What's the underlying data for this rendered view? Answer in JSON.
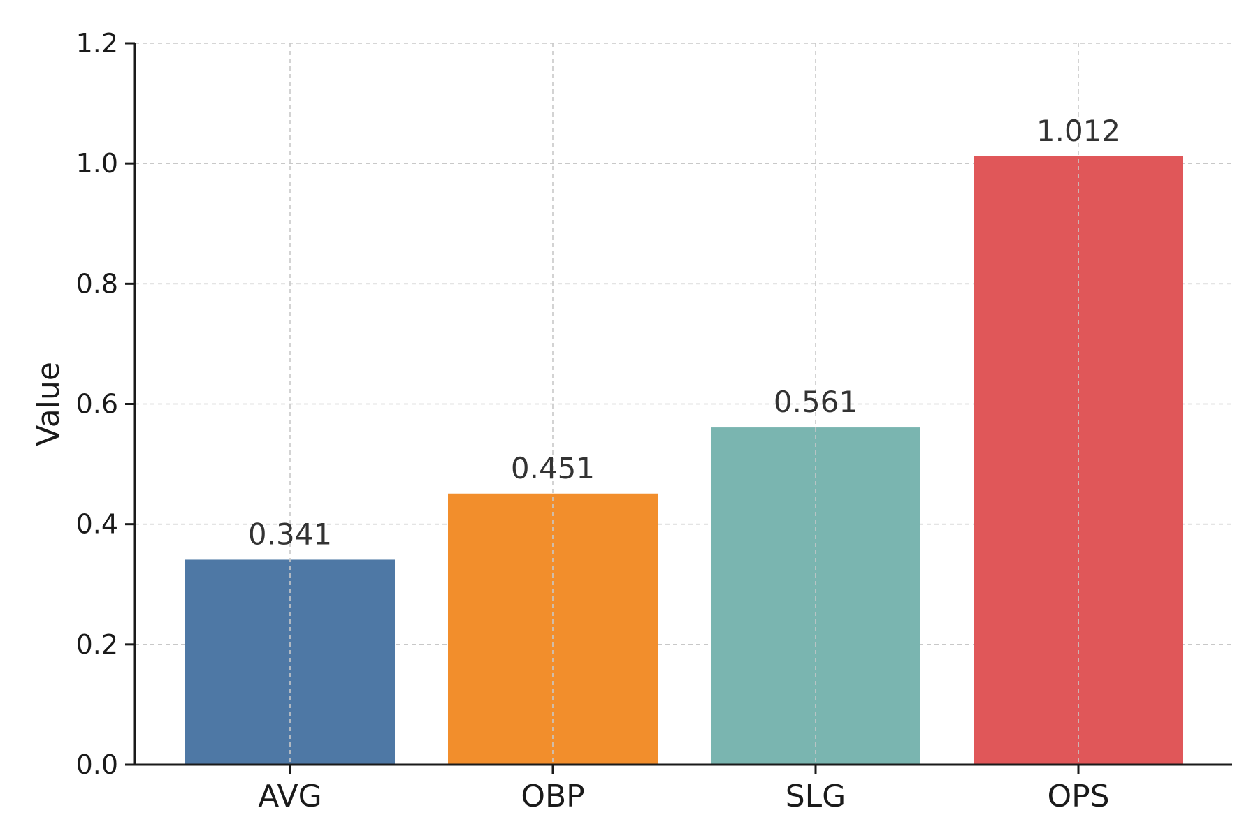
{
  "chart_data": {
    "type": "bar",
    "title": "",
    "xlabel": "",
    "ylabel": "Value",
    "categories": [
      "AVG",
      "OBP",
      "SLG",
      "OPS"
    ],
    "values": [
      0.341,
      0.451,
      0.561,
      1.012
    ],
    "value_labels": [
      "0.341",
      "0.451",
      "0.561",
      "1.012"
    ],
    "colors": [
      "#4e78a5",
      "#f28e2c",
      "#7ab5b0",
      "#e05759"
    ],
    "ylim": [
      0,
      1.2
    ],
    "yticks": [
      0.0,
      0.2,
      0.4,
      0.6,
      0.8,
      1.0,
      1.2
    ],
    "ytick_labels": [
      "0.0",
      "0.2",
      "0.4",
      "0.6",
      "0.8",
      "1.0",
      "1.2"
    ],
    "grid": true,
    "legend": "none"
  }
}
